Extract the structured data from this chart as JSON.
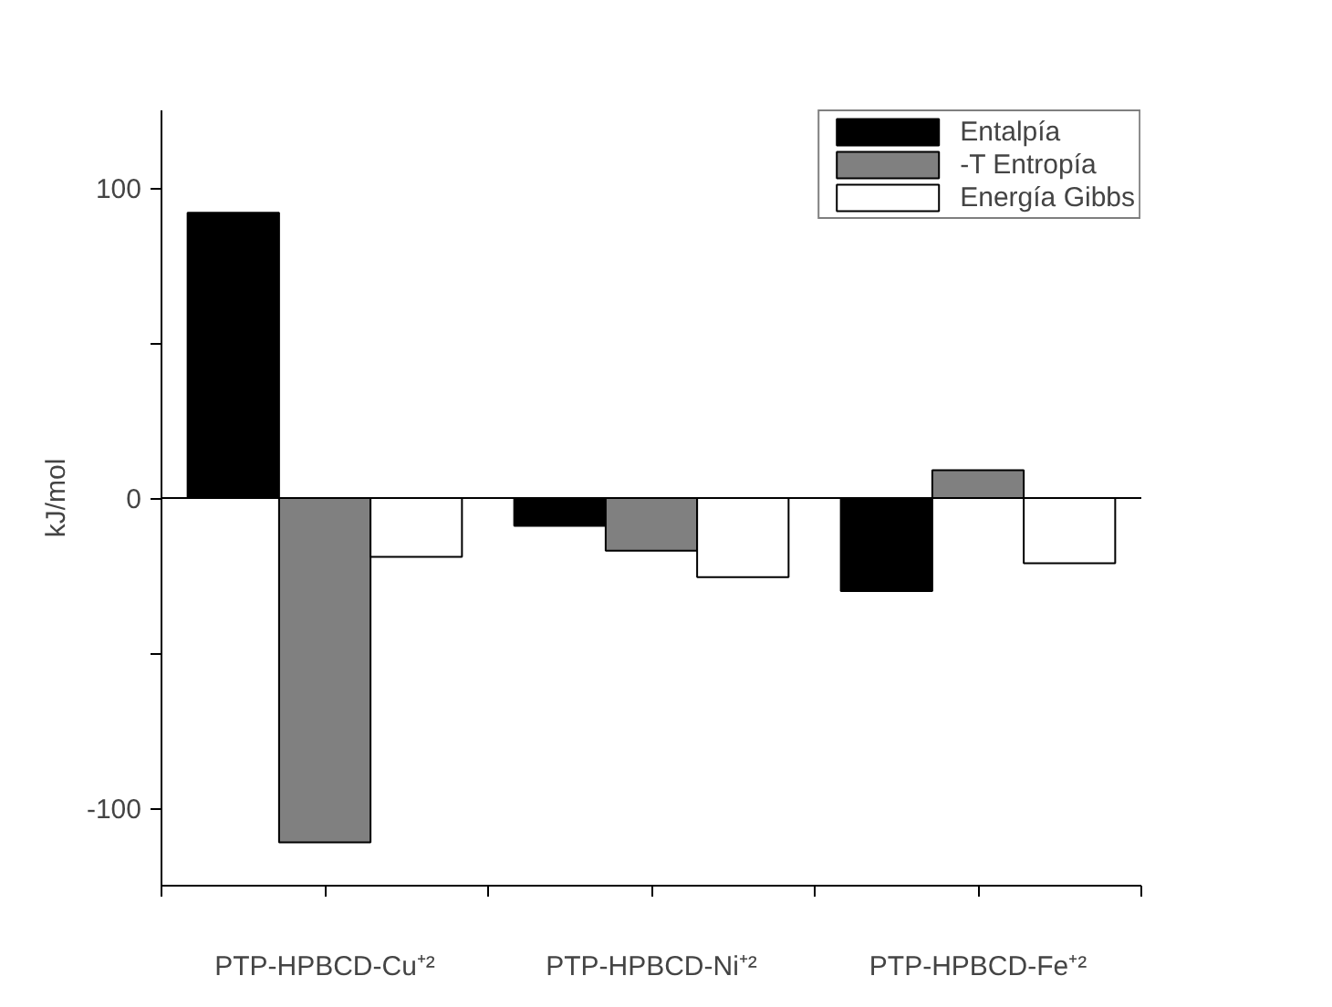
{
  "chart_data": {
    "type": "bar",
    "ylabel": "kJ/mol",
    "categories": [
      "PTP-HPBCD-Cu⁺²",
      "PTP-HPBCD-Ni⁺²",
      "PTP-HPBCD-Fe⁺²"
    ],
    "series": [
      {
        "name": "Entalpía",
        "color": "#000000",
        "values": [
          92,
          -9,
          -30
        ]
      },
      {
        "name": "-T Entropía",
        "color": "#808080",
        "values": [
          -111,
          -17,
          9
        ]
      },
      {
        "name": "Energía Gibbs",
        "color": "#ffffff",
        "values": [
          -19,
          -25.5,
          -21
        ]
      }
    ],
    "ylim": [
      -125,
      125
    ],
    "yticks": [
      -100,
      {
        "value": -50,
        "label": null
      },
      0,
      {
        "value": 50,
        "label": null
      },
      100
    ],
    "ref_lines": [
      {
        "axis": "y",
        "value": 0,
        "color": "#000000"
      }
    ],
    "grid": false,
    "legend": "top right"
  }
}
